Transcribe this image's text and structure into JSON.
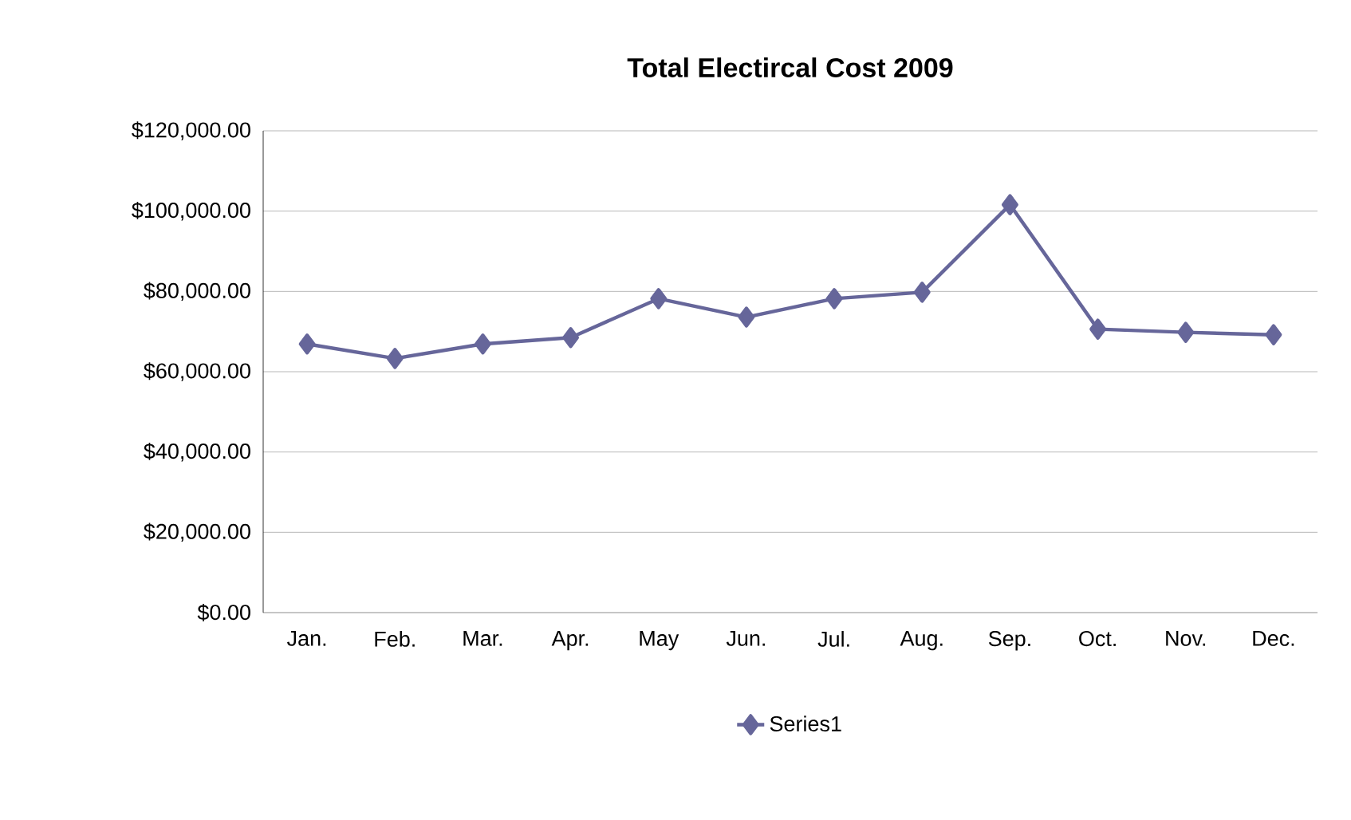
{
  "chart_data": {
    "type": "line",
    "title": "Total Electircal Cost 2009",
    "categories": [
      "Jan.",
      "Feb.",
      "Mar.",
      "Apr.",
      "May",
      "Jun.",
      "Jul.",
      "Aug.",
      "Sep.",
      "Oct.",
      "Nov.",
      "Dec."
    ],
    "series": [
      {
        "name": "Series1",
        "color": "#66669a",
        "values": [
          66900,
          63300,
          66900,
          68500,
          78200,
          73600,
          78200,
          79800,
          101600,
          70600,
          69800,
          69200
        ]
      }
    ],
    "ylim": [
      0,
      120000
    ],
    "yticks": [
      {
        "value": 0,
        "label": "$0.00"
      },
      {
        "value": 20000,
        "label": "$20,000.00"
      },
      {
        "value": 40000,
        "label": "$40,000.00"
      },
      {
        "value": 60000,
        "label": "$60,000.00"
      },
      {
        "value": 80000,
        "label": "$80,000.00"
      },
      {
        "value": 100000,
        "label": "$100,000.00"
      },
      {
        "value": 120000,
        "label": "$120,000.00"
      }
    ],
    "grid": "y",
    "legend": "bottom",
    "marker": "diamond",
    "line_style": "solid"
  }
}
